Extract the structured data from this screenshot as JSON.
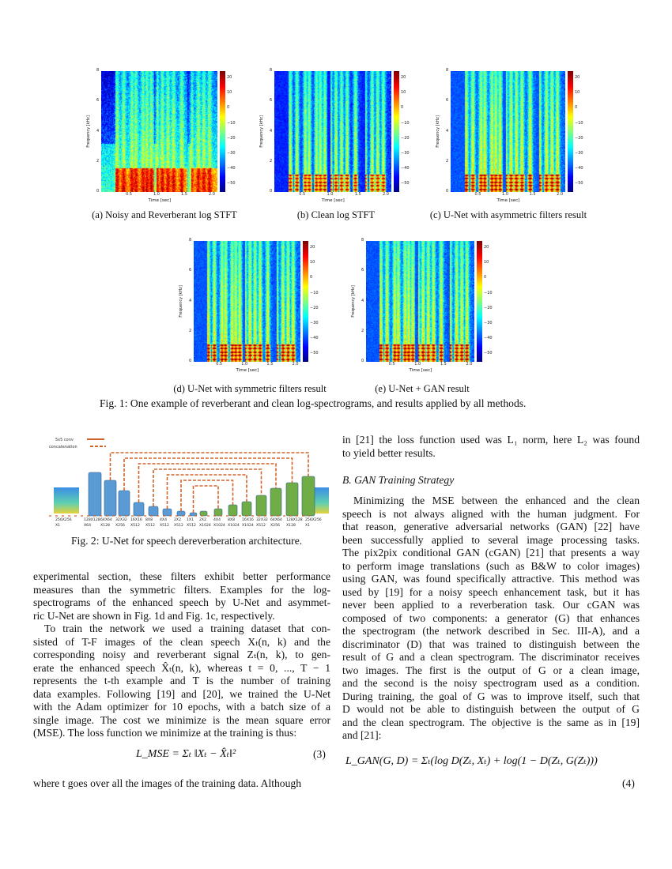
{
  "figure1": {
    "spectrograms": [
      {
        "id": "a",
        "caption": "(a) Noisy and Reverberant log STFT",
        "kind": "noisy"
      },
      {
        "id": "b",
        "caption": "(b) Clean log STFT",
        "kind": "clean"
      },
      {
        "id": "c",
        "caption": "(c) U-Net with asymmetric filters result",
        "kind": "enh"
      },
      {
        "id": "d",
        "caption": "(d) U-Net with symmetric filters result",
        "kind": "enh2"
      },
      {
        "id": "e",
        "caption": "(e) U-Net + GAN result",
        "kind": "gan"
      }
    ],
    "axes": {
      "xlabel": "Time [sec]",
      "ylabel": "Frequency [kHz]",
      "xticks": [
        "0.5",
        "1.0",
        "1.5",
        "2.0"
      ],
      "yticks": [
        "0",
        "2",
        "4",
        "6",
        "8"
      ],
      "colorbar_ticks": [
        "20",
        "10",
        "0",
        "−10",
        "−20",
        "−30",
        "−40",
        "−50"
      ],
      "colormap": "jet"
    },
    "caption": "Fig. 1: One example of reverberant and clean log-spectrograms, and results applied by all methods."
  },
  "figure2": {
    "legend": {
      "conv": "5x5 conv",
      "concat": "concatenation"
    },
    "encoder_color": "#5b9bd5",
    "decoder_color": "#70ad47",
    "arrow_color": "#d0632a",
    "labels": [
      [
        "256X256",
        "X1"
      ],
      [
        "128X128",
        "X64"
      ],
      [
        "64X64",
        "X128"
      ],
      [
        "32X32",
        "X256"
      ],
      [
        "16X16",
        "X512"
      ],
      [
        "8X8",
        "X512"
      ],
      [
        "4X4",
        "X512"
      ],
      [
        "2X2",
        "X512"
      ],
      [
        "1X1",
        "X512"
      ],
      [
        "2X2",
        "X1024"
      ],
      [
        "4X4",
        "X1024"
      ],
      [
        "8X8",
        "X1024"
      ],
      [
        "16X16",
        "X1024"
      ],
      [
        "32X32",
        "X512"
      ],
      [
        "64X64",
        "X256"
      ],
      [
        "128X128",
        "X128"
      ],
      [
        "256X256",
        "X1"
      ]
    ],
    "caption": "Fig. 2: U-Net for speech dereverberation architecture."
  },
  "left_column": {
    "paragraphs": [
      {
        "indent": false,
        "lines": [
          "experimental section, these filters exhibit better performance",
          "measures than the symmetric filters. Examples for the log-",
          "spectrograms of the enhanced speech by U-Net and asymmet-",
          "ric U-Net are shown in Fig. 1d and Fig. 1c, respectively."
        ]
      },
      {
        "indent": true,
        "lines": [
          "To train the network we used a training dataset that con-",
          "sisted of T-F images of the clean speech Xₜ(n, k) and the",
          "corresponding noisy and reverberant signal Zₜ(n, k), to gen-",
          "erate the enhanced speech X̂ₜ(n, k), whereas t = 0, ..., T − 1",
          "represents the t-th example and T is the number of training",
          "data examples. Following [19] and [20], we trained the U-Net",
          "with the Adam optimizer for 10 epochs, with a batch size of a",
          "single image. The cost we minimize is the mean square error",
          "(MSE). The loss function we minimize at the training is thus:"
        ]
      }
    ],
    "equation": "L_MSE = Σₜ ‖Xₜ − X̂ₜ‖²",
    "equation_number": "(3)",
    "after": "where t goes over all the images of the training data. Although"
  },
  "right_column": {
    "intro_lines": [
      "in [21] the loss function used was L₁ norm, here L₂ was found",
      "to yield better results."
    ],
    "section_heading": "B.  GAN Training Strategy",
    "lines": [
      "Minimizing the MSE between the enhanced and the clean",
      "speech is not always aligned with the human judgment. For",
      "that reason, generative adversarial networks (GAN) [22] have",
      "been successfully applied to several image processing tasks.",
      "The pix2pix conditional GAN (cGAN) [21] that presents a way",
      "to perform image translations (such as B&W to color images)",
      "using GAN, was found specifically attractive. This method was",
      "used by [19] for a noisy speech enhancement task, but it has",
      "never been applied to a reverberation task. Our cGAN was",
      "composed of two components: a generator (G) that enhances",
      "the spectrogram (the network described in Sec. III-A), and a",
      "discriminator (D) that was trained to distinguish between the",
      "result of G and a clean spectrogram. The discriminator receives",
      "two images. The first is the output of G or a clean image,",
      "and the second is the noisy spectrogram used as a condition.",
      "During training, the goal of G was to improve itself, such that",
      "D would not be able to distinguish between the output of G",
      "and the clean spectrogram. The objective is the same as in [19]",
      "and [21]:"
    ],
    "equation": "L_GAN(G, D) = Σₜ(log D(Zₜ, Xₜ) + log(1 − D(Zₜ, G(Zₜ)))",
    "equation_number": "(4)"
  }
}
